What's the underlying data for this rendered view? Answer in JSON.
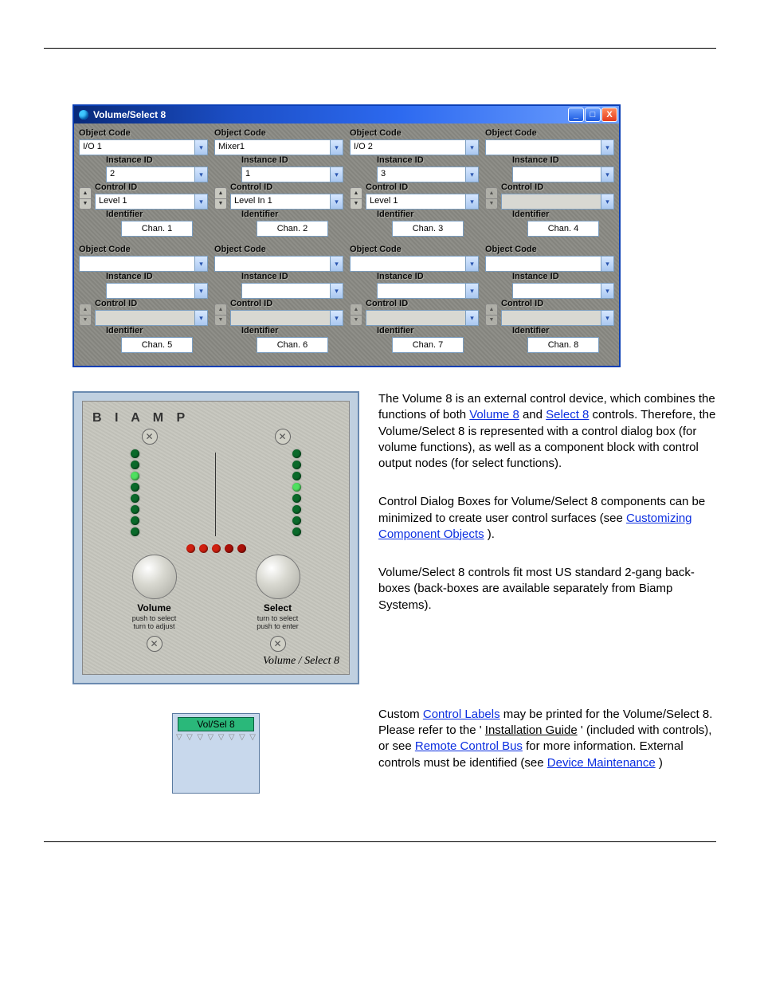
{
  "dialog": {
    "title": "Volume/Select 8",
    "labels": {
      "obj": "Object Code",
      "inst": "Instance ID",
      "ctrl": "Control ID",
      "ident": "Identifier"
    },
    "channels": [
      {
        "obj": "I/O 1",
        "inst": "2",
        "ctrl": "Level 1",
        "ident": "Chan. 1",
        "enabled": true
      },
      {
        "obj": "Mixer1",
        "inst": "1",
        "ctrl": "Level In 1",
        "ident": "Chan. 2",
        "enabled": true
      },
      {
        "obj": "I/O 2",
        "inst": "3",
        "ctrl": "Level 1",
        "ident": "Chan. 3",
        "enabled": true
      },
      {
        "obj": "",
        "inst": "",
        "ctrl": "",
        "ident": "Chan. 4",
        "enabled": false
      },
      {
        "obj": "",
        "inst": "",
        "ctrl": "",
        "ident": "Chan. 5",
        "enabled": false
      },
      {
        "obj": "",
        "inst": "",
        "ctrl": "",
        "ident": "Chan. 6",
        "enabled": false
      },
      {
        "obj": "",
        "inst": "",
        "ctrl": "",
        "ident": "Chan. 7",
        "enabled": false
      },
      {
        "obj": "",
        "inst": "",
        "ctrl": "",
        "ident": "Chan. 8",
        "enabled": false
      }
    ]
  },
  "device": {
    "brand": "B I A M P",
    "left_leds": [
      "#0a6a2a",
      "#0a6a2a",
      "#4fe060",
      "#0a6a2a",
      "#0a6a2a",
      "#0a6a2a",
      "#0a6a2a",
      "#0a6a2a"
    ],
    "right_leds": [
      "#0a6a2a",
      "#0a6a2a",
      "#0a6a2a",
      "#4fe060",
      "#0a6a2a",
      "#0a6a2a",
      "#0a6a2a",
      "#0a6a2a"
    ],
    "h_leds": [
      "#d02010",
      "#d02010",
      "#d02010",
      "#aa1008",
      "#aa1008"
    ],
    "vol_label": "Volume",
    "sel_label": "Select",
    "vol_sub": "push to select\nturn to adjust",
    "sel_sub": "turn to select\npush to enter",
    "footer": "Volume / Select 8"
  },
  "text": {
    "p1a": "The Volume 8 is an external control device, which combines the functions of both ",
    "link_vol": "Volume 8",
    "p1b": " and ",
    "link_sel": "Select 8",
    "p1c": " controls. Therefore, the Volume/Select 8 is represented with a control dialog box (for volume functions), as well as a component block with control output nodes (for select functions).",
    "p2a": "Control Dialog Boxes for Volume/Select 8 components can be minimized to create user control surfaces (see ",
    "link_cust": "Customizing Component Objects",
    "p2b": ").",
    "p3": "Volume/Select 8 controls fit most US standard 2-gang back-boxes (back-boxes are available separately from Biamp Systems).",
    "p4a": "Custom ",
    "link_labels": "Control Labels",
    "p4b": " may be printed for the Volume/Select 8. Please refer to the '",
    "inst_guide": "Installation Guide",
    "p4c": "' (included with controls), or see ",
    "link_bus": "Remote Control Bus",
    "p4d": " for more information. External controls must be identified (see ",
    "link_dev": "Device Maintenance",
    "p4e": ")"
  },
  "component": {
    "label": "Vol/Sel 8",
    "nodes": 8
  }
}
